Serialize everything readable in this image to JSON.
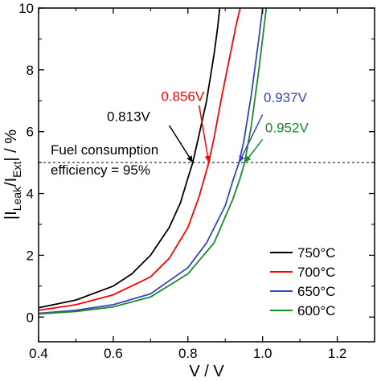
{
  "chart_data": {
    "type": "line",
    "xlabel": "V / V",
    "ylabel": "|I_Leak/I_Ext| / %",
    "xlim": [
      0.4,
      1.3
    ],
    "ylim": [
      -0.8,
      10
    ],
    "x_ticks": [
      0.4,
      0.6,
      0.8,
      1.0,
      1.2
    ],
    "x_tick_labels": [
      "0.4",
      "0.6",
      "0.8",
      "1.0",
      "1.2"
    ],
    "y_ticks": [
      0,
      2,
      4,
      6,
      8,
      10
    ],
    "y_tick_labels": [
      "0",
      "2",
      "4",
      "6",
      "8",
      "10"
    ],
    "reference_line": {
      "y": 5,
      "style": "dashed",
      "label_line1": "Fuel consumption",
      "label_line2": "efficiency = 95%"
    },
    "series": [
      {
        "name": "750°C",
        "color": "#000000",
        "x": [
          0.4,
          0.5,
          0.6,
          0.65,
          0.7,
          0.75,
          0.78,
          0.8,
          0.813,
          0.83,
          0.85,
          0.87,
          0.88,
          0.885
        ],
        "y": [
          0.3,
          0.55,
          1.0,
          1.4,
          2.0,
          2.9,
          3.7,
          4.5,
          5.0,
          5.9,
          7.0,
          8.5,
          9.4,
          10.0
        ]
      },
      {
        "name": "700°C",
        "color": "#ff0000",
        "x": [
          0.4,
          0.5,
          0.6,
          0.7,
          0.75,
          0.8,
          0.83,
          0.856,
          0.87,
          0.89,
          0.91,
          0.93,
          0.94
        ],
        "y": [
          0.22,
          0.4,
          0.72,
          1.3,
          1.9,
          2.9,
          3.9,
          5.0,
          5.8,
          7.1,
          8.3,
          9.5,
          10.0
        ]
      },
      {
        "name": "650°C",
        "color": "#3a44c0",
        "x": [
          0.4,
          0.5,
          0.6,
          0.7,
          0.8,
          0.85,
          0.9,
          0.92,
          0.937,
          0.95,
          0.97,
          0.99,
          1.0
        ],
        "y": [
          0.12,
          0.22,
          0.4,
          0.75,
          1.6,
          2.4,
          3.6,
          4.4,
          5.0,
          5.7,
          7.2,
          9.0,
          10.0
        ]
      },
      {
        "name": "600°C",
        "color": "#1a8a2a",
        "x": [
          0.4,
          0.5,
          0.6,
          0.7,
          0.8,
          0.87,
          0.92,
          0.94,
          0.952,
          0.97,
          0.99,
          1.01
        ],
        "y": [
          0.1,
          0.18,
          0.33,
          0.65,
          1.4,
          2.4,
          3.8,
          4.5,
          5.0,
          6.2,
          8.0,
          10.0
        ]
      }
    ],
    "annotations": [
      {
        "text": "0.813V",
        "color": "#000000",
        "target_x": 0.813,
        "target_y": 5.0,
        "label_x": 0.583,
        "label_y": 6.35,
        "anchor": "start",
        "tail_x": 0.75,
        "tail_y": 6.2
      },
      {
        "text": "0.856V",
        "color": "#ff0000",
        "target_x": 0.856,
        "target_y": 5.0,
        "label_x": 0.728,
        "label_y": 7.0,
        "anchor": "start",
        "tail_x": 0.83,
        "tail_y": 6.85
      },
      {
        "text": "0.937V",
        "color": "#3a44c0",
        "target_x": 0.937,
        "target_y": 5.0,
        "label_x": 1.003,
        "label_y": 6.95,
        "anchor": "start",
        "tail_x": 1.0,
        "tail_y": 6.55
      },
      {
        "text": "0.952V",
        "color": "#1a8a2a",
        "target_x": 0.952,
        "target_y": 5.0,
        "label_x": 1.007,
        "label_y": 5.98,
        "anchor": "start",
        "tail_x": 1.0,
        "tail_y": 5.75
      }
    ],
    "legend": {
      "position": "bottom-right"
    },
    "grid": false
  }
}
